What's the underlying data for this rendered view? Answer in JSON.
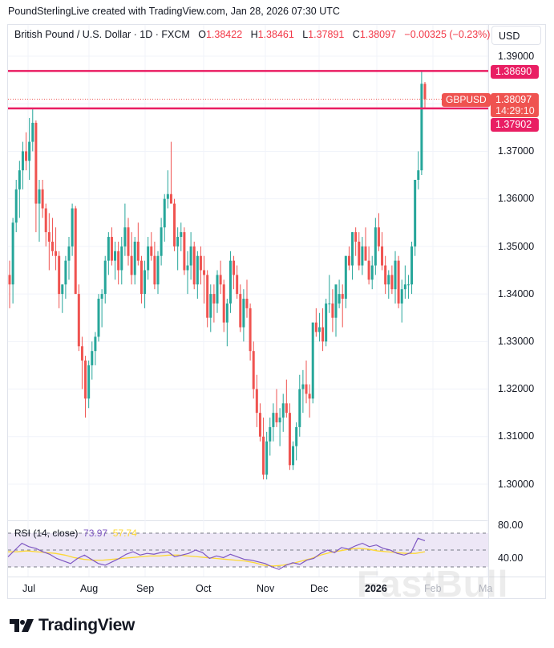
{
  "credit": "PoundSterlingLive created with TradingView.com, Jan 28, 2026 07:30 UTC",
  "legend": {
    "symbol_desc": "British Pound / U.S. Dollar · 1D · FXCM",
    "o_label": "O",
    "o": "1.38422",
    "h_label": "H",
    "h": "1.38461",
    "l_label": "L",
    "l": "1.37891",
    "c_label": "C",
    "c": "1.38097",
    "change": "−0.00325 (−0.23%)"
  },
  "currency_button": "USD",
  "price_axis": [
    "1.39000",
    "1.37000",
    "1.36000",
    "1.35000",
    "1.34000",
    "1.33000",
    "1.32000",
    "1.31000",
    "1.30000"
  ],
  "price_labels": {
    "resistance": "1.38690",
    "last": "1.38097",
    "countdown": "14:29:10",
    "support": "1.37902",
    "symbol": "GBPUSD"
  },
  "rsi": {
    "label": "RSI (14, close)",
    "value": "73.97",
    "ma_value": "57.74",
    "axis": [
      "80.00",
      "40.00"
    ]
  },
  "time_axis": [
    "Jul",
    "Aug",
    "Sep",
    "Oct",
    "Nov",
    "Dec",
    "2026",
    "Feb",
    "Ma"
  ],
  "logo_text": "TradingView",
  "watermark": "FastBull",
  "colors": {
    "up": "#26a69a",
    "down": "#ef5350",
    "hline": "#e91e63",
    "rsi": "#7e57c2",
    "rsi_ma": "#fdd835",
    "rsi_band": "#ede7f6"
  },
  "chart_data": {
    "type": "candlestick",
    "title": "British Pound / U.S. Dollar · 1D · FXCM",
    "ylabel": "USD",
    "ylim": [
      1.2975,
      1.3925
    ],
    "x_ticks": [
      "Jul",
      "Aug",
      "Sep",
      "Oct",
      "Nov",
      "Dec",
      "2026",
      "Feb"
    ],
    "horizontal_lines": [
      1.3869,
      1.37902
    ],
    "last_price": 1.38097,
    "ohlc_last": {
      "o": 1.38422,
      "h": 1.38461,
      "l": 1.37891,
      "c": 1.38097
    },
    "candles": [
      [
        1.344,
        1.347,
        1.337,
        1.342
      ],
      [
        1.342,
        1.356,
        1.338,
        1.355
      ],
      [
        1.355,
        1.364,
        1.353,
        1.362
      ],
      [
        1.362,
        1.368,
        1.356,
        1.366
      ],
      [
        1.366,
        1.372,
        1.362,
        1.37
      ],
      [
        1.37,
        1.374,
        1.366,
        1.368
      ],
      [
        1.368,
        1.377,
        1.364,
        1.372
      ],
      [
        1.372,
        1.379,
        1.37,
        1.376
      ],
      [
        1.376,
        1.3765,
        1.353,
        1.359
      ],
      [
        1.359,
        1.364,
        1.351,
        1.362
      ],
      [
        1.362,
        1.364,
        1.356,
        1.358
      ],
      [
        1.358,
        1.359,
        1.35,
        1.353
      ],
      [
        1.353,
        1.357,
        1.345,
        1.351
      ],
      [
        1.351,
        1.356,
        1.348,
        1.349
      ],
      [
        1.349,
        1.354,
        1.345,
        1.348
      ],
      [
        1.348,
        1.349,
        1.337,
        1.34
      ],
      [
        1.34,
        1.342,
        1.336,
        1.342
      ],
      [
        1.342,
        1.348,
        1.339,
        1.347
      ],
      [
        1.347,
        1.352,
        1.343,
        1.35
      ],
      [
        1.35,
        1.359,
        1.348,
        1.358
      ],
      [
        1.358,
        1.3585,
        1.34,
        1.34
      ],
      [
        1.34,
        1.342,
        1.328,
        1.329
      ],
      [
        1.329,
        1.331,
        1.32,
        1.326
      ],
      [
        1.326,
        1.327,
        1.314,
        1.318
      ],
      [
        1.318,
        1.326,
        1.316,
        1.325
      ],
      [
        1.325,
        1.33,
        1.322,
        1.328
      ],
      [
        1.328,
        1.332,
        1.325,
        1.331
      ],
      [
        1.331,
        1.34,
        1.33,
        1.339
      ],
      [
        1.339,
        1.341,
        1.333,
        1.34
      ],
      [
        1.34,
        1.348,
        1.338,
        1.347
      ],
      [
        1.347,
        1.353,
        1.344,
        1.352
      ],
      [
        1.352,
        1.354,
        1.346,
        1.347
      ],
      [
        1.347,
        1.351,
        1.343,
        1.349
      ],
      [
        1.349,
        1.351,
        1.342,
        1.345
      ],
      [
        1.345,
        1.352,
        1.342,
        1.35
      ],
      [
        1.35,
        1.359,
        1.348,
        1.354
      ],
      [
        1.354,
        1.356,
        1.346,
        1.348
      ],
      [
        1.348,
        1.353,
        1.342,
        1.344
      ],
      [
        1.344,
        1.352,
        1.342,
        1.351
      ],
      [
        1.351,
        1.355,
        1.346,
        1.347
      ],
      [
        1.347,
        1.348,
        1.338,
        1.34
      ],
      [
        1.34,
        1.347,
        1.337,
        1.345
      ],
      [
        1.345,
        1.352,
        1.343,
        1.35
      ],
      [
        1.35,
        1.353,
        1.347,
        1.348
      ],
      [
        1.348,
        1.351,
        1.341,
        1.342
      ],
      [
        1.342,
        1.349,
        1.34,
        1.348
      ],
      [
        1.348,
        1.356,
        1.346,
        1.354
      ],
      [
        1.354,
        1.361,
        1.351,
        1.36
      ],
      [
        1.36,
        1.366,
        1.358,
        1.361
      ],
      [
        1.361,
        1.372,
        1.36,
        1.359
      ],
      [
        1.359,
        1.36,
        1.349,
        1.35
      ],
      [
        1.35,
        1.354,
        1.345,
        1.352
      ],
      [
        1.352,
        1.355,
        1.349,
        1.353
      ],
      [
        1.353,
        1.354,
        1.344,
        1.345
      ],
      [
        1.345,
        1.349,
        1.34,
        1.346
      ],
      [
        1.346,
        1.353,
        1.343,
        1.35
      ],
      [
        1.35,
        1.351,
        1.341,
        1.342
      ],
      [
        1.342,
        1.349,
        1.339,
        1.348
      ],
      [
        1.348,
        1.35,
        1.342,
        1.345
      ],
      [
        1.345,
        1.348,
        1.338,
        1.344
      ],
      [
        1.344,
        1.345,
        1.333,
        1.335
      ],
      [
        1.335,
        1.342,
        1.332,
        1.34
      ],
      [
        1.34,
        1.342,
        1.334,
        1.338
      ],
      [
        1.338,
        1.345,
        1.336,
        1.344
      ],
      [
        1.344,
        1.347,
        1.34,
        1.342
      ],
      [
        1.342,
        1.343,
        1.332,
        1.334
      ],
      [
        1.334,
        1.339,
        1.329,
        1.338
      ],
      [
        1.338,
        1.349,
        1.336,
        1.347
      ],
      [
        1.347,
        1.348,
        1.341,
        1.344
      ],
      [
        1.344,
        1.346,
        1.339,
        1.34
      ],
      [
        1.34,
        1.342,
        1.332,
        1.333
      ],
      [
        1.333,
        1.341,
        1.33,
        1.339
      ],
      [
        1.339,
        1.343,
        1.335,
        1.337
      ],
      [
        1.337,
        1.338,
        1.326,
        1.328
      ],
      [
        1.328,
        1.33,
        1.318,
        1.32
      ],
      [
        1.32,
        1.323,
        1.312,
        1.315
      ],
      [
        1.315,
        1.317,
        1.309,
        1.31
      ],
      [
        1.31,
        1.314,
        1.301,
        1.302
      ],
      [
        1.302,
        1.311,
        1.301,
        1.309
      ],
      [
        1.309,
        1.314,
        1.306,
        1.312
      ],
      [
        1.312,
        1.317,
        1.309,
        1.315
      ],
      [
        1.315,
        1.32,
        1.312,
        1.313
      ],
      [
        1.313,
        1.316,
        1.308,
        1.314
      ],
      [
        1.314,
        1.319,
        1.311,
        1.317
      ],
      [
        1.317,
        1.322,
        1.314,
        1.315
      ],
      [
        1.315,
        1.317,
        1.303,
        1.304
      ],
      [
        1.304,
        1.309,
        1.303,
        1.308
      ],
      [
        1.308,
        1.313,
        1.305,
        1.312
      ],
      [
        1.312,
        1.323,
        1.31,
        1.32
      ],
      [
        1.32,
        1.324,
        1.315,
        1.321
      ],
      [
        1.321,
        1.326,
        1.317,
        1.319
      ],
      [
        1.319,
        1.321,
        1.314,
        1.318
      ],
      [
        1.318,
        1.334,
        1.317,
        1.334
      ],
      [
        1.334,
        1.337,
        1.331,
        1.332
      ],
      [
        1.332,
        1.336,
        1.33,
        1.333
      ],
      [
        1.333,
        1.337,
        1.328,
        1.33
      ],
      [
        1.33,
        1.339,
        1.329,
        1.338
      ],
      [
        1.338,
        1.344,
        1.336,
        1.338
      ],
      [
        1.338,
        1.341,
        1.332,
        1.335
      ],
      [
        1.335,
        1.34,
        1.331,
        1.342
      ],
      [
        1.338,
        1.343,
        1.337,
        1.34
      ],
      [
        1.34,
        1.342,
        1.333,
        1.339
      ],
      [
        1.339,
        1.348,
        1.337,
        1.348
      ],
      [
        1.348,
        1.35,
        1.345,
        1.346
      ],
      [
        1.346,
        1.353,
        1.343,
        1.353
      ],
      [
        1.353,
        1.354,
        1.348,
        1.351
      ],
      [
        1.351,
        1.353,
        1.345,
        1.346
      ],
      [
        1.346,
        1.352,
        1.344,
        1.35
      ],
      [
        1.35,
        1.354,
        1.348,
        1.347
      ],
      [
        1.347,
        1.35,
        1.342,
        1.343
      ],
      [
        1.343,
        1.348,
        1.341,
        1.346
      ],
      [
        1.346,
        1.356,
        1.344,
        1.354
      ],
      [
        1.354,
        1.357,
        1.349,
        1.35
      ],
      [
        1.35,
        1.353,
        1.345,
        1.346
      ],
      [
        1.346,
        1.348,
        1.34,
        1.342
      ],
      [
        1.342,
        1.345,
        1.339,
        1.344
      ],
      [
        1.344,
        1.346,
        1.34,
        1.341
      ],
      [
        1.341,
        1.349,
        1.338,
        1.347
      ],
      [
        1.347,
        1.348,
        1.337,
        1.338
      ],
      [
        1.338,
        1.343,
        1.334,
        1.341
      ],
      [
        1.341,
        1.346,
        1.339,
        1.342
      ],
      [
        1.342,
        1.344,
        1.339,
        1.342
      ],
      [
        1.342,
        1.351,
        1.34,
        1.35
      ],
      [
        1.35,
        1.364,
        1.348,
        1.364
      ],
      [
        1.364,
        1.37,
        1.362,
        1.366
      ],
      [
        1.366,
        1.387,
        1.365,
        1.3842
      ],
      [
        1.3842,
        1.3846,
        1.3789,
        1.38097
      ]
    ]
  }
}
